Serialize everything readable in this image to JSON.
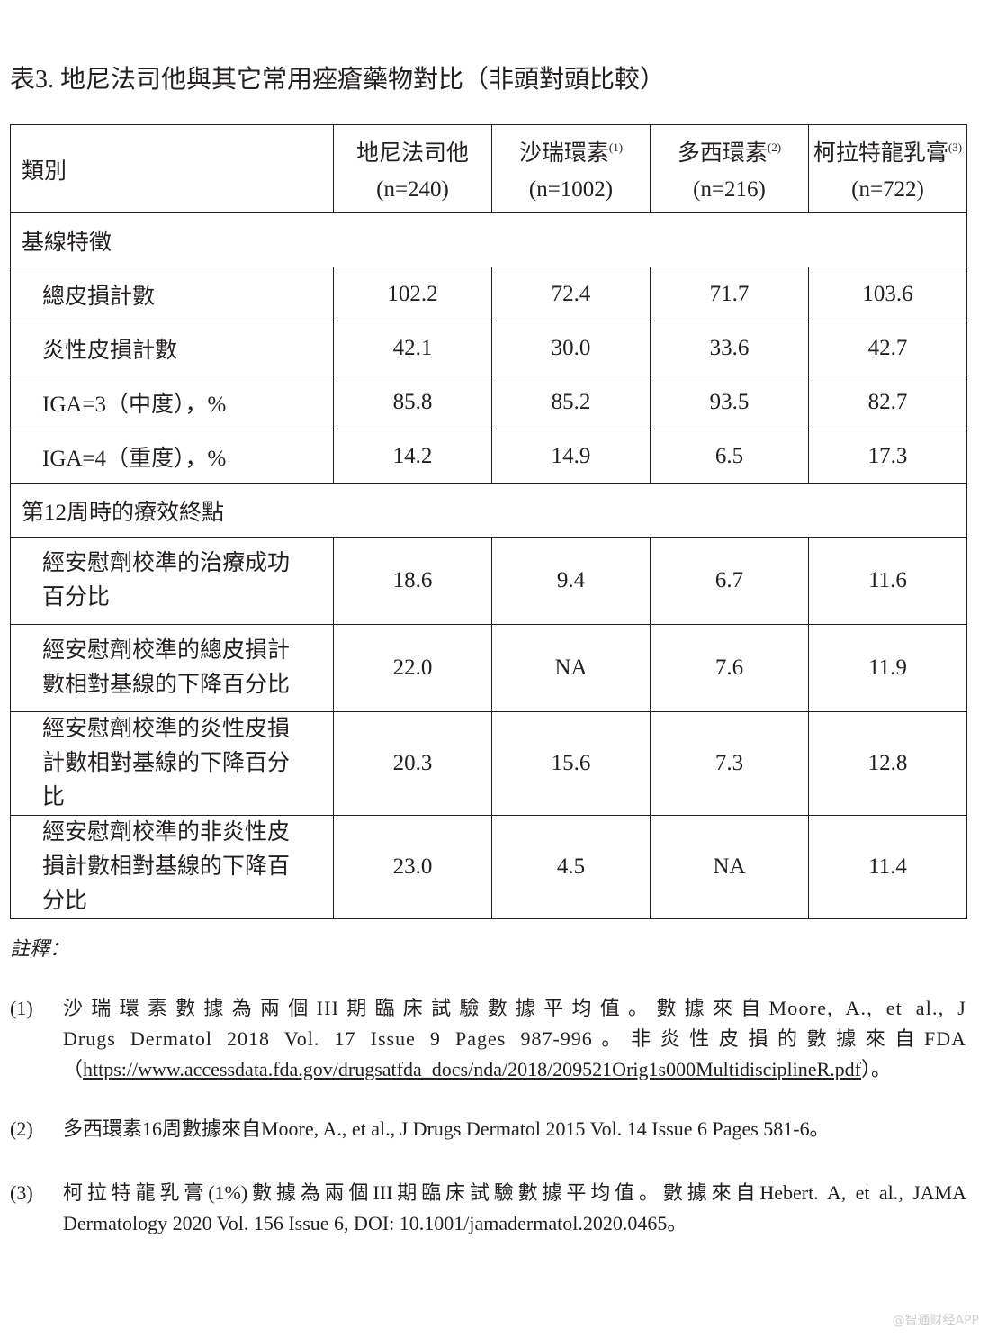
{
  "title": "表3. 地尼法司他與其它常用痤瘡藥物對比（非頭對頭比較）",
  "table": {
    "category_header": "類別",
    "columns": [
      {
        "name": "地尼法司他",
        "note": "",
        "n": "(n=240)"
      },
      {
        "name": "沙瑞環素",
        "note": "(1)",
        "n": "(n=1002)"
      },
      {
        "name": "多西環素",
        "note": "(2)",
        "n": "(n=216)"
      },
      {
        "name": "柯拉特龍乳膏",
        "note": "(3)",
        "n": "(n=722)"
      }
    ],
    "sections": [
      {
        "label": "基線特徵",
        "rows": [
          {
            "label": "總皮損計數",
            "values": [
              "102.2",
              "72.4",
              "71.7",
              "103.6"
            ]
          },
          {
            "label": "炎性皮損計數",
            "values": [
              "42.1",
              "30.0",
              "33.6",
              "42.7"
            ]
          },
          {
            "label": "IGA=3（中度），%",
            "values": [
              "85.8",
              "85.2",
              "93.5",
              "82.7"
            ]
          },
          {
            "label": "IGA=4（重度），%",
            "values": [
              "14.2",
              "14.9",
              "6.5",
              "17.3"
            ]
          }
        ]
      },
      {
        "label": "第12周時的療效終點",
        "rows": [
          {
            "label": "經安慰劑校準的治療成功百分比",
            "values": [
              "18.6",
              "9.4",
              "6.7",
              "11.6"
            ]
          },
          {
            "label": "經安慰劑校準的總皮損計數相對基線的下降百分比",
            "values": [
              "22.0",
              "NA",
              "7.6",
              "11.9"
            ]
          },
          {
            "label": "經安慰劑校準的炎性皮損計數相對基線的下降百分比",
            "values": [
              "20.3",
              "15.6",
              "7.3",
              "12.8"
            ]
          },
          {
            "label": "經安慰劑校準的非炎性皮損計數相對基線的下降百分比",
            "values": [
              "23.0",
              "4.5",
              "NA",
              "11.4"
            ]
          }
        ]
      }
    ]
  },
  "notes": {
    "heading": "註釋：",
    "items": [
      {
        "num": "(1)",
        "line1": "沙瑞環素數據為兩個III期臨床試驗數據平均值。數據來自Moore, A., et al., J",
        "line2": "Drugs Dermatol 2018 Vol. 17 Issue 9 Pages 987-996。非炎性皮損的數據來自FDA",
        "url_open": "（",
        "url": "https://www.accessdata.fda.gov/drugsatfda_docs/nda/2018/209521Orig1s000MultidisciplineR.pdf",
        "url_close": "）。"
      },
      {
        "num": "(2)",
        "line1": "多西環素16周數據來自Moore, A., et al., J Drugs Dermatol 2015 Vol. 14 Issue 6 Pages 581-6。"
      },
      {
        "num": "(3)",
        "line1": "柯拉特龍乳膏(1%)數據為兩個III期臨床試驗數據平均值。數據來自Hebert. A, et al., JAMA",
        "line2": "Dermatology 2020 Vol. 156 Issue 6, DOI: 10.1001/jamadermatol.2020.0465。"
      }
    ]
  },
  "watermark": "@智通财经APP"
}
